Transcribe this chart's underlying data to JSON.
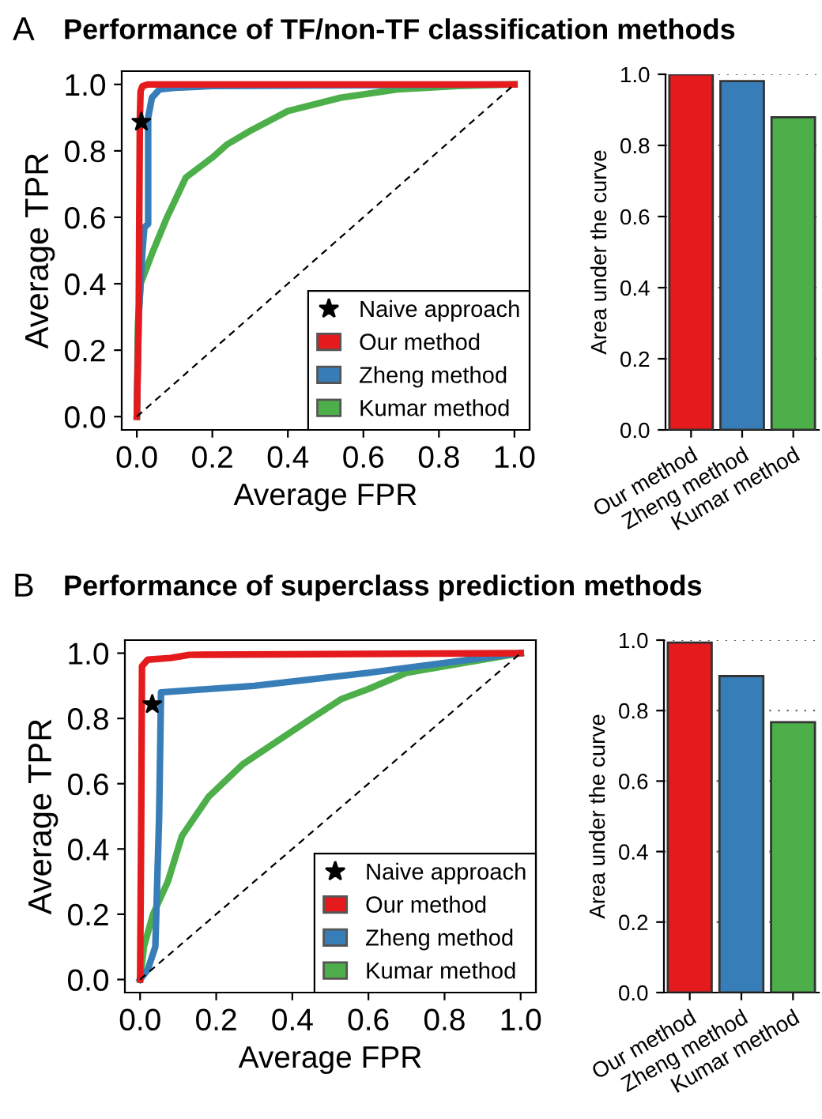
{
  "chart_data": [
    {
      "type": "line",
      "title": "Performance of TF/non-TF classification methods",
      "annotations": [
        "A"
      ],
      "xlabel": "Average FPR",
      "ylabel": "Average TPR",
      "xlim": [
        -0.04,
        1.04
      ],
      "ylim": [
        -0.04,
        1.04
      ],
      "xticks": [
        {
          "value": 0,
          "label": "0.0"
        },
        {
          "value": 0.2,
          "label": "0.2"
        },
        {
          "value": 0.4,
          "label": "0.4"
        },
        {
          "value": 0.6,
          "label": "0.6"
        },
        {
          "value": 0.8,
          "label": "0.8"
        },
        {
          "value": 1,
          "label": "1.0"
        }
      ],
      "yticks": [
        {
          "value": 0,
          "label": "0.0"
        },
        {
          "value": 0.2,
          "label": "0.2"
        },
        {
          "value": 0.4,
          "label": "0.4"
        },
        {
          "value": 0.6,
          "label": "0.6"
        },
        {
          "value": 0.8,
          "label": "0.8"
        },
        {
          "value": 1,
          "label": "1.0"
        }
      ],
      "legend": "bottom right",
      "series": [
        {
          "type": "line",
          "line_style": "dashed",
          "color": "#000000",
          "x": [
            0,
            1
          ],
          "values": [
            0,
            1
          ]
        },
        {
          "name": "Kumar method",
          "color": "#4daf4a",
          "x": [
            0,
            0.003,
            0.01,
            0.04,
            0.08,
            0.13,
            0.2,
            0.24,
            0.3,
            0.4,
            0.54,
            0.69,
            0.85,
            1
          ],
          "values": [
            0,
            0.28,
            0.4,
            0.49,
            0.6,
            0.72,
            0.78,
            0.82,
            0.86,
            0.92,
            0.96,
            0.985,
            0.995,
            1
          ]
        },
        {
          "name": "Zheng method",
          "color": "#377eb8",
          "x": [
            0,
            0.005,
            0.015,
            0.02,
            0.03,
            0.03,
            0.04,
            0.06,
            0.1,
            0.2,
            1
          ],
          "values": [
            0,
            0.3,
            0.5,
            0.57,
            0.58,
            0.9,
            0.96,
            0.985,
            0.99,
            0.995,
            1
          ]
        },
        {
          "name": "Our method",
          "color": "#e41a1c",
          "x": [
            0,
            0.005,
            0.008,
            0.01,
            0.015,
            0.03,
            1
          ],
          "values": [
            0,
            0.3,
            0.9,
            0.98,
            0.995,
            1,
            1
          ]
        },
        {
          "type": "scatter",
          "marker": "star",
          "name": "Naive approach",
          "color": "#000000",
          "x": [
            0.012
          ],
          "values": [
            0.887
          ]
        }
      ]
    },
    {
      "type": "bar",
      "ylabel": "Area under the curve",
      "categories": [
        "Our method",
        "Zheng method",
        "Kumar method"
      ],
      "values": [
        1.0,
        0.981,
        0.879
      ],
      "colors": [
        "#e41a1c",
        "#377eb8",
        "#4daf4a"
      ],
      "ylim": [
        0,
        1
      ],
      "yticks": [
        {
          "value": 0,
          "label": "0.0"
        },
        {
          "value": 0.2,
          "label": "0.2"
        },
        {
          "value": 0.4,
          "label": "0.4"
        },
        {
          "value": 0.6,
          "label": "0.6"
        },
        {
          "value": 0.8,
          "label": "0.8"
        },
        {
          "value": 1,
          "label": "1.0"
        }
      ],
      "grid": "y"
    },
    {
      "type": "line",
      "title": "Performance of superclass prediction methods",
      "annotations": [
        "B"
      ],
      "xlabel": "Average FPR",
      "ylabel": "Average TPR",
      "xlim": [
        -0.04,
        1.04
      ],
      "ylim": [
        -0.04,
        1.04
      ],
      "xticks": [
        {
          "value": 0,
          "label": "0.0"
        },
        {
          "value": 0.2,
          "label": "0.2"
        },
        {
          "value": 0.4,
          "label": "0.4"
        },
        {
          "value": 0.6,
          "label": "0.6"
        },
        {
          "value": 0.8,
          "label": "0.8"
        },
        {
          "value": 1,
          "label": "1.0"
        }
      ],
      "yticks": [
        {
          "value": 0,
          "label": "0.0"
        },
        {
          "value": 0.2,
          "label": "0.2"
        },
        {
          "value": 0.4,
          "label": "0.4"
        },
        {
          "value": 0.6,
          "label": "0.6"
        },
        {
          "value": 0.8,
          "label": "0.8"
        },
        {
          "value": 1,
          "label": "1.0"
        }
      ],
      "legend": "bottom right",
      "series": [
        {
          "type": "line",
          "line_style": "dashed",
          "color": "#000000",
          "x": [
            0,
            1
          ],
          "values": [
            0,
            1
          ]
        },
        {
          "name": "Kumar method",
          "color": "#4daf4a",
          "x": [
            0,
            0.01,
            0.034,
            0.073,
            0.11,
            0.18,
            0.27,
            0.36,
            0.45,
            0.53,
            0.6,
            0.7,
            0.85,
            1
          ],
          "values": [
            0,
            0.1,
            0.2,
            0.3,
            0.44,
            0.56,
            0.66,
            0.73,
            0.8,
            0.86,
            0.89,
            0.94,
            0.97,
            1
          ]
        },
        {
          "name": "Zheng method",
          "color": "#377eb8",
          "x": [
            0,
            0.02,
            0.04,
            0.05,
            0.055,
            0.3,
            0.6,
            0.8,
            1
          ],
          "values": [
            0,
            0.03,
            0.1,
            0.5,
            0.88,
            0.9,
            0.94,
            0.97,
            1
          ]
        },
        {
          "name": "Our method",
          "color": "#e41a1c",
          "x": [
            0,
            0.003,
            0.005,
            0.02,
            0.08,
            0.13,
            1
          ],
          "values": [
            0,
            0.5,
            0.96,
            0.98,
            0.985,
            0.995,
            1
          ]
        },
        {
          "type": "scatter",
          "marker": "star",
          "name": "Naive approach",
          "color": "#000000",
          "x": [
            0.032
          ],
          "values": [
            0.843
          ]
        }
      ]
    },
    {
      "type": "bar",
      "ylabel": "Area under the curve",
      "categories": [
        "Our method",
        "Zheng method",
        "Kumar method"
      ],
      "values": [
        0.993,
        0.898,
        0.767
      ],
      "colors": [
        "#e41a1c",
        "#377eb8",
        "#4daf4a"
      ],
      "ylim": [
        0,
        1
      ],
      "yticks": [
        {
          "value": 0,
          "label": "0.0"
        },
        {
          "value": 0.2,
          "label": "0.2"
        },
        {
          "value": 0.4,
          "label": "0.4"
        },
        {
          "value": 0.6,
          "label": "0.6"
        },
        {
          "value": 0.8,
          "label": "0.8"
        },
        {
          "value": 1,
          "label": "1.0"
        }
      ],
      "grid": "y"
    }
  ]
}
